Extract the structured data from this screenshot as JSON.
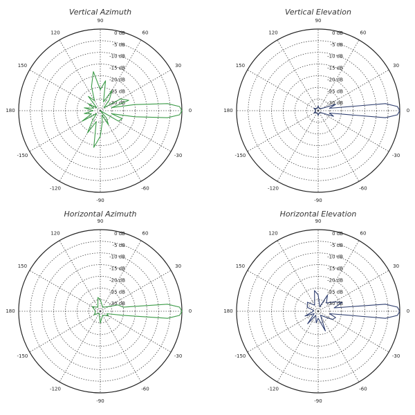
{
  "chart_data": [
    {
      "type": "polar",
      "title": "Vertical Azimuth",
      "color": "#3a9a46",
      "x": [
        -180,
        -170,
        -160,
        -150,
        -140,
        -130,
        -120,
        -110,
        -100,
        -90,
        -80,
        -70,
        -60,
        -50,
        -40,
        -30,
        -20,
        -15,
        -10,
        -6,
        -3,
        0,
        3,
        6,
        10,
        15,
        20,
        30,
        40,
        50,
        60,
        70,
        80,
        90,
        100,
        110,
        120,
        130,
        140,
        150,
        160,
        170,
        180
      ],
      "values": [
        -32,
        -28,
        -31,
        -26,
        -33,
        -30,
        -24,
        -30,
        -19,
        -24,
        -30,
        -33,
        -28,
        -31,
        -35,
        -26,
        -25,
        -30,
        -20,
        -6,
        -1,
        0,
        -1,
        -6,
        -20,
        -30,
        -22,
        -25,
        -33,
        -29,
        -25,
        -31,
        -22,
        -26,
        -18,
        -24,
        -30,
        -27,
        -33,
        -29,
        -32,
        -28,
        -32
      ],
      "xticks": [
        0,
        30,
        60,
        90,
        120,
        150,
        180,
        -150,
        -120,
        -90,
        -60,
        -30
      ],
      "ylim": [
        -35,
        0
      ],
      "yticks": [
        {
          "value": 0,
          "label": "0 dB"
        },
        {
          "value": -5,
          "label": "-5 dB"
        },
        {
          "value": -10,
          "label": "-10 dB"
        },
        {
          "value": -15,
          "label": "-15 dB"
        },
        {
          "value": -20,
          "label": "-20 dB"
        },
        {
          "value": -25,
          "label": "-25 dB"
        },
        {
          "value": -30,
          "label": "-30 dB"
        }
      ]
    },
    {
      "type": "polar",
      "title": "Vertical Elevation",
      "color": "#2c3c6e",
      "x": [
        -180,
        -150,
        -120,
        -90,
        -60,
        -30,
        -20,
        -12,
        -6,
        -3,
        0,
        3,
        6,
        12,
        20,
        30,
        60,
        90,
        120,
        150,
        180
      ],
      "values": [
        -34,
        -33,
        -34,
        -33,
        -34,
        -33,
        -28,
        -30,
        -6,
        -1,
        0,
        -1,
        -6,
        -30,
        -27,
        -33,
        -34,
        -33,
        -34,
        -33,
        -34
      ],
      "xticks": [
        0,
        30,
        60,
        90,
        120,
        150,
        180,
        -150,
        -120,
        -90,
        -60,
        -30
      ],
      "ylim": [
        -35,
        0
      ],
      "yticks": [
        {
          "value": 0,
          "label": "0 dB"
        },
        {
          "value": -5,
          "label": "-5 dB"
        },
        {
          "value": -10,
          "label": "-10 dB"
        },
        {
          "value": -15,
          "label": "-15 dB"
        },
        {
          "value": -20,
          "label": "-20 dB"
        },
        {
          "value": -25,
          "label": "-25 dB"
        },
        {
          "value": -30,
          "label": "-30 dB"
        }
      ]
    },
    {
      "type": "polar",
      "title": "Horizontal Azimuth",
      "color": "#3a9a46",
      "x": [
        -180,
        -150,
        -120,
        -90,
        -60,
        -30,
        -20,
        -10,
        -6,
        -3,
        0,
        3,
        6,
        10,
        20,
        30,
        60,
        90,
        100,
        120,
        150,
        180
      ],
      "values": [
        -33,
        -32,
        -34,
        -30,
        -33,
        -31,
        -32,
        -25,
        -6,
        -1,
        0,
        -1,
        -6,
        -25,
        -27,
        -31,
        -33,
        -30,
        -29,
        -33,
        -31,
        -33
      ],
      "xticks": [
        0,
        30,
        60,
        90,
        120,
        150,
        180,
        -150,
        -120,
        -90,
        -60,
        -30
      ],
      "ylim": [
        -35,
        0
      ],
      "yticks": [
        {
          "value": 0,
          "label": "0 dB"
        },
        {
          "value": -5,
          "label": "-5 dB"
        },
        {
          "value": -10,
          "label": "-10 dB"
        },
        {
          "value": -15,
          "label": "-15 dB"
        },
        {
          "value": -20,
          "label": "-20 dB"
        },
        {
          "value": -25,
          "label": "-25 dB"
        },
        {
          "value": -30,
          "label": "-30 dB"
        }
      ]
    },
    {
      "type": "polar",
      "title": "Horizontal Elevation",
      "color": "#2c3c6e",
      "x": [
        -180,
        -160,
        -150,
        -130,
        -120,
        -100,
        -90,
        -70,
        -60,
        -30,
        -20,
        -12,
        -6,
        -3,
        0,
        3,
        6,
        12,
        20,
        30,
        45,
        60,
        70,
        90,
        100,
        120,
        140,
        160,
        170,
        180
      ],
      "values": [
        -33,
        -29,
        -33,
        -28,
        -33,
        -30,
        -32,
        -26,
        -33,
        -28,
        -27,
        -30,
        -6,
        -1,
        0,
        -1,
        -6,
        -28,
        -24,
        -27,
        -30,
        -27,
        -33,
        -28,
        -26,
        -32,
        -29,
        -30,
        -33,
        -33
      ],
      "xticks": [
        0,
        30,
        60,
        90,
        120,
        150,
        180,
        -150,
        -120,
        -90,
        -60,
        -30
      ],
      "ylim": [
        -35,
        0
      ],
      "yticks": [
        {
          "value": 0,
          "label": "0 dB"
        },
        {
          "value": -5,
          "label": "-5 dB"
        },
        {
          "value": -10,
          "label": "-10 dB"
        },
        {
          "value": -15,
          "label": "-15 dB"
        },
        {
          "value": -20,
          "label": "-20 dB"
        },
        {
          "value": -25,
          "label": "-25 dB"
        },
        {
          "value": -30,
          "label": "-30 dB"
        }
      ]
    }
  ]
}
